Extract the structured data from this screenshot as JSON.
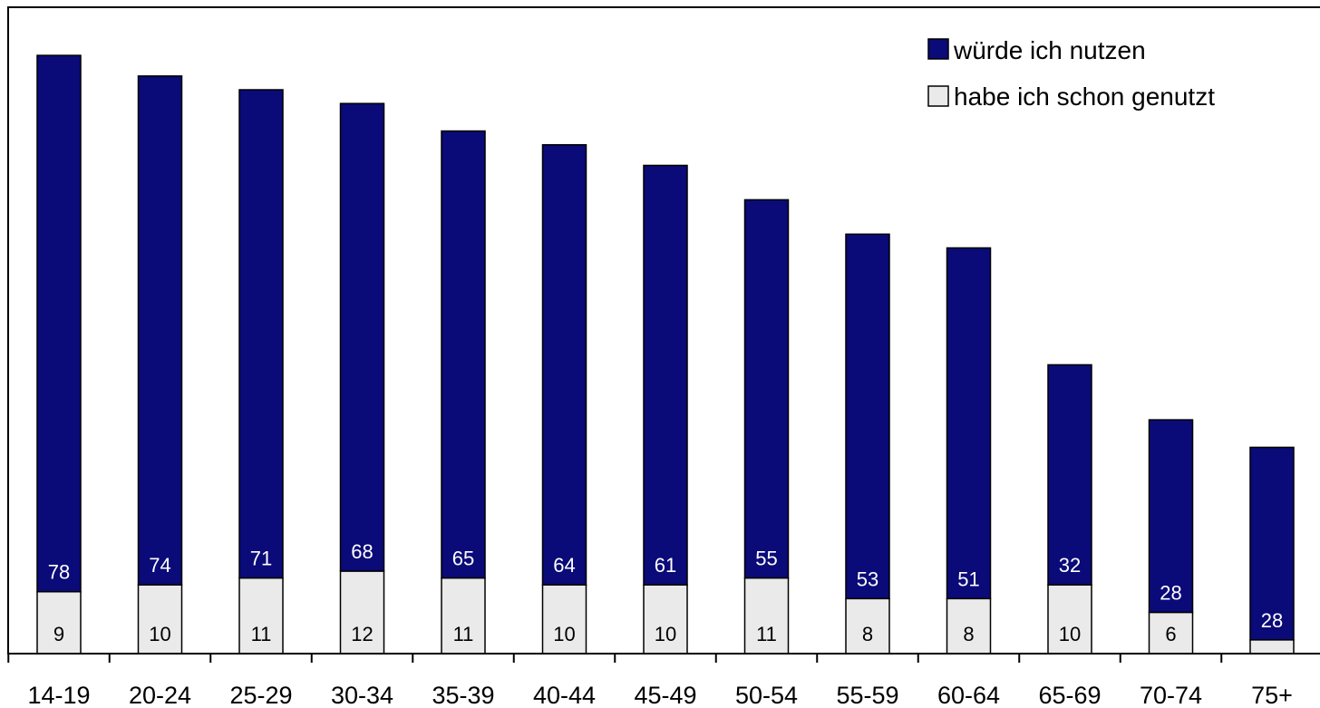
{
  "chart_data": {
    "type": "bar",
    "stacked": true,
    "categories": [
      "14-19",
      "20-24",
      "25-29",
      "30-34",
      "35-39",
      "40-44",
      "45-49",
      "50-54",
      "55-59",
      "60-64",
      "65-69",
      "70-74",
      "75+"
    ],
    "series": [
      {
        "name": "habe ich schon genutzt",
        "values": [
          9,
          10,
          11,
          12,
          11,
          10,
          10,
          11,
          8,
          8,
          10,
          6,
          2
        ],
        "color": "#eaeaea"
      },
      {
        "name": "würde ich nutzen",
        "values": [
          78,
          74,
          71,
          68,
          65,
          64,
          61,
          55,
          53,
          51,
          32,
          28,
          28
        ],
        "color": "#0a0a78"
      }
    ],
    "title": "",
    "xlabel": "",
    "ylabel": "",
    "ylim": [
      0,
      94
    ],
    "grid": false,
    "legend": "top-right",
    "legend_entries": [
      "würde ich nutzen",
      "habe ich schon genutzt"
    ]
  }
}
